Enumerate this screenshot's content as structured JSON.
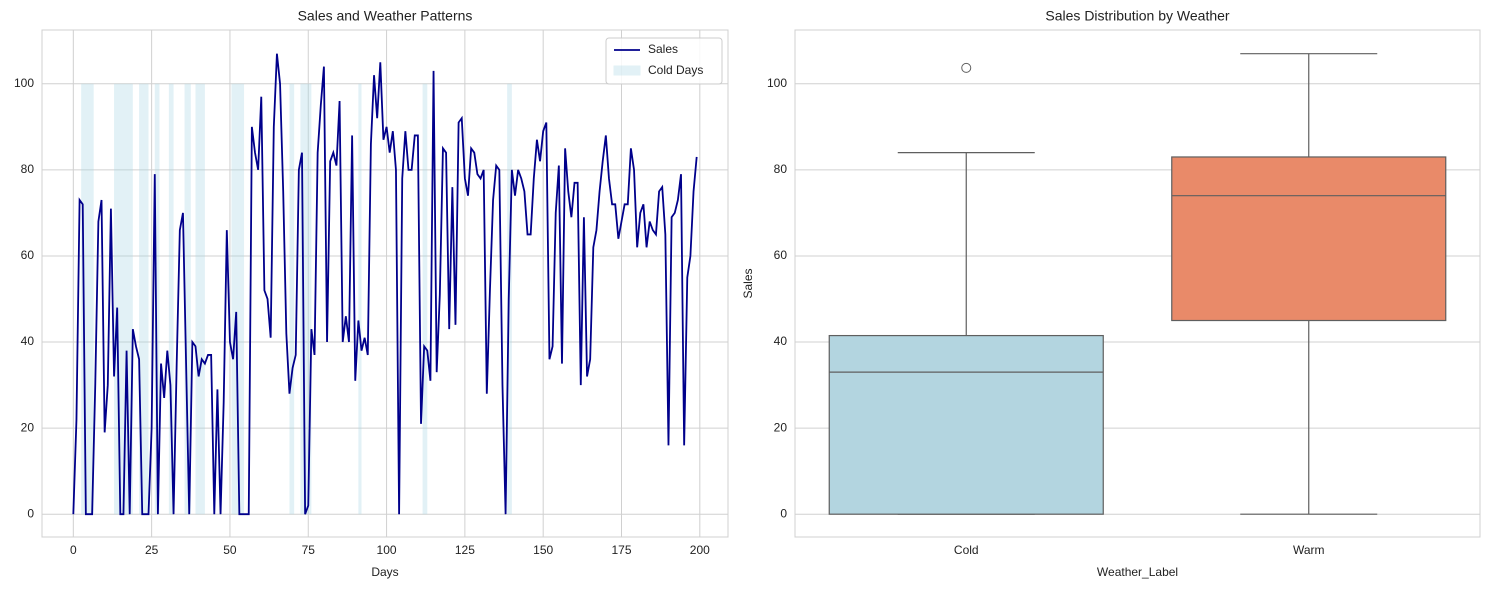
{
  "chart_data": [
    {
      "type": "line",
      "title": "Sales and Weather Patterns",
      "xlabel": "Days",
      "x": [
        0,
        1,
        2,
        3,
        4,
        5,
        6,
        7,
        8,
        9,
        10,
        11,
        12,
        13,
        14,
        15,
        16,
        17,
        18,
        19,
        20,
        21,
        22,
        23,
        24,
        25,
        26,
        27,
        28,
        29,
        30,
        31,
        32,
        33,
        34,
        35,
        36,
        37,
        38,
        39,
        40,
        41,
        42,
        43,
        44,
        45,
        46,
        47,
        48,
        49,
        50,
        51,
        52,
        53,
        54,
        55,
        56,
        57,
        58,
        59,
        60,
        61,
        62,
        63,
        64,
        65,
        66,
        67,
        68,
        69,
        70,
        71,
        72,
        73,
        74,
        75,
        76,
        77,
        78,
        79,
        80,
        81,
        82,
        83,
        84,
        85,
        86,
        87,
        88,
        89,
        90,
        91,
        92,
        93,
        94,
        95,
        96,
        97,
        98,
        99,
        100,
        101,
        102,
        103,
        104,
        105,
        106,
        107,
        108,
        109,
        110,
        111,
        112,
        113,
        114,
        115,
        116,
        117,
        118,
        119,
        120,
        121,
        122,
        123,
        124,
        125,
        126,
        127,
        128,
        129,
        130,
        131,
        132,
        133,
        134,
        135,
        136,
        137,
        138,
        139,
        140,
        141,
        142,
        143,
        144,
        145,
        146,
        147,
        148,
        149,
        150,
        151,
        152,
        153,
        154,
        155,
        156,
        157,
        158,
        159,
        160,
        161,
        162,
        163,
        164,
        165,
        166,
        167,
        168,
        169,
        170,
        171,
        172,
        173,
        174,
        175,
        176,
        177,
        178,
        179,
        180,
        181,
        182,
        183,
        184,
        185,
        186,
        187,
        188,
        189,
        190,
        191,
        192,
        193,
        194,
        195,
        196,
        197,
        198,
        199
      ],
      "series": [
        {
          "name": "Sales",
          "color": "#00008b",
          "values": [
            0,
            22,
            73,
            72,
            0,
            0,
            0,
            30,
            68,
            73,
            19,
            30,
            71,
            32,
            48,
            0,
            0,
            38,
            0,
            43,
            39,
            36,
            0,
            0,
            0,
            20,
            79,
            0,
            35,
            27,
            38,
            30,
            0,
            35,
            66,
            70,
            35,
            0,
            40,
            39,
            32,
            36,
            35,
            37,
            37,
            0,
            29,
            0,
            26,
            66,
            40,
            36,
            47,
            0,
            0,
            0,
            0,
            90,
            84,
            80,
            97,
            52,
            50,
            41,
            90,
            107,
            100,
            75,
            42,
            28,
            34,
            37,
            80,
            84,
            0,
            2,
            43,
            37,
            84,
            95,
            104,
            40,
            82,
            84,
            81,
            96,
            40,
            46,
            40,
            88,
            31,
            45,
            38,
            41,
            37,
            86,
            102,
            92,
            105,
            87,
            90,
            84,
            89,
            80,
            0,
            78,
            89,
            80,
            80,
            88,
            88,
            21,
            39,
            38,
            31,
            103,
            33,
            51,
            85,
            84,
            43,
            76,
            44,
            91,
            92,
            78,
            74,
            85,
            84,
            79,
            78,
            80,
            28,
            52,
            73,
            81,
            80,
            30,
            0,
            50,
            80,
            74,
            80,
            78,
            75,
            65,
            65,
            78,
            87,
            82,
            89,
            91,
            36,
            39,
            70,
            81,
            35,
            85,
            75,
            69,
            77,
            77,
            30,
            69,
            32,
            36,
            62,
            66,
            75,
            82,
            88,
            78,
            72,
            72,
            64,
            68,
            72,
            72,
            85,
            80,
            62,
            70,
            72,
            62,
            68,
            66,
            65,
            75,
            76,
            65,
            16,
            69,
            70,
            73,
            79,
            16,
            55,
            60,
            75,
            83
          ]
        }
      ],
      "bands": {
        "name": "Cold Days",
        "color": "#add8e6",
        "range": [
          0,
          100
        ],
        "spans": [
          [
            2.5,
            6.5
          ],
          [
            13,
            19
          ],
          [
            21,
            24
          ],
          [
            26,
            27.5
          ],
          [
            30.5,
            32
          ],
          [
            35.5,
            37.5
          ],
          [
            39,
            42
          ],
          [
            50.5,
            54.5
          ],
          [
            69,
            70.5
          ],
          [
            72.5,
            76
          ],
          [
            91,
            92
          ],
          [
            111.5,
            113
          ],
          [
            138.5,
            140
          ]
        ]
      },
      "xlim": [
        -10,
        209
      ],
      "xticks": [
        0,
        25,
        50,
        75,
        100,
        125,
        150,
        175,
        200
      ],
      "ylim": [
        -5.3,
        112.5
      ],
      "yticks": [
        0,
        20,
        40,
        60,
        80,
        100
      ],
      "grid": true,
      "legend": "upper right"
    },
    {
      "type": "box",
      "title": "Sales Distribution by Weather",
      "xlabel": "Weather_Label",
      "ylabel": "Sales",
      "categories": [
        "Cold",
        "Warm"
      ],
      "boxes": [
        {
          "color": "#b3d5e0",
          "whislo": 0,
          "q1": 0,
          "med": 33,
          "q3": 41.5,
          "whishi": 84,
          "fliers": [
            103.7
          ]
        },
        {
          "color": "#e98a69",
          "whislo": 0,
          "q1": 45,
          "med": 74,
          "q3": 83,
          "whishi": 107,
          "fliers": []
        }
      ],
      "ylim": [
        -5.3,
        112.5
      ],
      "yticks": [
        0,
        20,
        40,
        60,
        80,
        100
      ],
      "grid": true
    }
  ]
}
